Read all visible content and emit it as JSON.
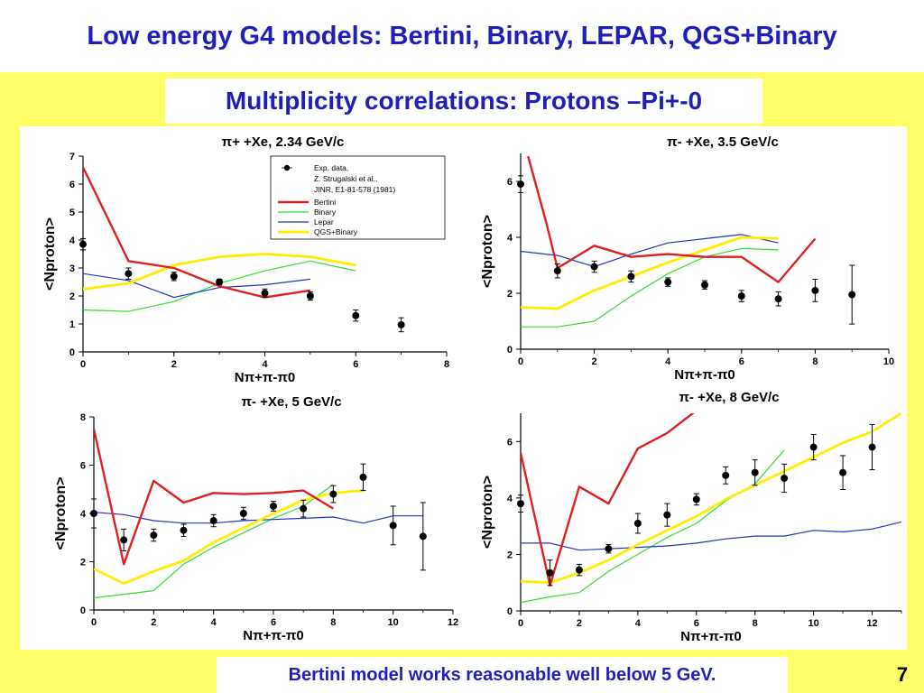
{
  "title": "Low energy G4 models: Bertini, Binary, LEPAR, QGS+Binary",
  "subtitle": "Multiplicity correlations: Protons –Pi+-0",
  "footer": "Bertini model works reasonable well below 5 GeV.",
  "page_number": "7",
  "colors": {
    "title": "#1f1fb8",
    "background": "#ffff66",
    "bertini": "#e02020",
    "binary": "#33dd33",
    "lepar": "#2233bb",
    "qgs": "#ffee00",
    "exp": "#000000"
  },
  "legend": {
    "entries": [
      "Exp. data,",
      "Z. Strugalski et al.,",
      "JINR, E1-81-578 (1981)",
      "Bertini",
      "Binary",
      "Lepar",
      "QGS+Binary"
    ]
  },
  "chart_data": [
    {
      "type": "line",
      "title": "π+ +Xe, 2.34 GeV/c",
      "xlabel": "Nπ+π-π0",
      "ylabel": "<Nproton>",
      "xlim": [
        0,
        8
      ],
      "ylim": [
        0,
        7
      ],
      "xticks": [
        0,
        2,
        4,
        6,
        8
      ],
      "yticks": [
        0,
        1,
        2,
        3,
        4,
        5,
        6,
        7
      ],
      "legend_position": "top-right",
      "exp": {
        "x": [
          0,
          1,
          2,
          3,
          4,
          5,
          6,
          7
        ],
        "y": [
          3.85,
          2.8,
          2.7,
          2.5,
          2.1,
          2.0,
          1.3,
          0.97
        ],
        "err": [
          0.2,
          0.2,
          0.15,
          0.1,
          0.15,
          0.15,
          0.2,
          0.25
        ]
      },
      "series": [
        {
          "key": "bertini",
          "x": [
            0,
            1,
            2,
            3,
            4,
            5
          ],
          "y": [
            6.6,
            3.25,
            3.0,
            2.35,
            1.95,
            2.2
          ]
        },
        {
          "key": "binary",
          "x": [
            0,
            1,
            2,
            3,
            4,
            5,
            6
          ],
          "y": [
            1.5,
            1.45,
            1.8,
            2.45,
            2.9,
            3.25,
            2.9
          ]
        },
        {
          "key": "lepar",
          "x": [
            0,
            1,
            2,
            3,
            4,
            5
          ],
          "y": [
            2.8,
            2.55,
            1.95,
            2.3,
            2.4,
            2.6
          ]
        },
        {
          "key": "qgs",
          "x": [
            0,
            1,
            2,
            3,
            4,
            5,
            6
          ],
          "y": [
            2.25,
            2.45,
            3.1,
            3.4,
            3.5,
            3.4,
            3.1
          ]
        }
      ]
    },
    {
      "type": "line",
      "title": "π- +Xe, 3.5 GeV/c",
      "xlabel": "Nπ+π-π0",
      "ylabel": "<Nproton>",
      "xlim": [
        0,
        10
      ],
      "ylim": [
        0,
        7
      ],
      "xticks": [
        0,
        2,
        4,
        6,
        8,
        10
      ],
      "yticks": [
        0,
        2,
        4,
        6
      ],
      "exp": {
        "x": [
          0,
          1,
          2,
          3,
          4,
          5,
          6,
          7,
          8,
          9
        ],
        "y": [
          5.9,
          2.8,
          2.95,
          2.6,
          2.4,
          2.3,
          1.9,
          1.8,
          2.1,
          1.95
        ],
        "err": [
          0.3,
          0.25,
          0.2,
          0.2,
          0.15,
          0.15,
          0.2,
          0.25,
          0.4,
          1.05
        ]
      },
      "series": [
        {
          "key": "bertini",
          "x": [
            0.2,
            0.7,
            1,
            2,
            3,
            4,
            5,
            6,
            7,
            8
          ],
          "y": [
            6.9,
            4.5,
            2.9,
            3.7,
            3.3,
            3.4,
            3.3,
            3.3,
            2.4,
            3.95
          ]
        },
        {
          "key": "binary",
          "x": [
            0,
            1,
            2,
            3,
            4,
            5,
            6,
            7
          ],
          "y": [
            0.8,
            0.8,
            1.0,
            1.9,
            2.7,
            3.3,
            3.6,
            3.55
          ]
        },
        {
          "key": "lepar",
          "x": [
            0,
            1,
            2,
            3,
            4,
            5,
            6,
            7
          ],
          "y": [
            3.5,
            3.35,
            2.95,
            3.4,
            3.8,
            3.95,
            4.1,
            3.8
          ]
        },
        {
          "key": "qgs",
          "x": [
            0,
            1,
            2,
            3,
            4,
            5,
            6,
            7
          ],
          "y": [
            1.5,
            1.45,
            2.1,
            2.6,
            3.1,
            3.55,
            4.0,
            3.95
          ]
        }
      ]
    },
    {
      "type": "line",
      "title": "π- +Xe, 5 GeV/c",
      "xlabel": "Nπ+π-π0",
      "ylabel": "<Nproton>",
      "xlim": [
        0,
        12
      ],
      "ylim": [
        0,
        8
      ],
      "xticks": [
        0,
        2,
        4,
        6,
        8,
        10,
        12
      ],
      "yticks": [
        0,
        2,
        4,
        6,
        8
      ],
      "exp": {
        "x": [
          0,
          1,
          2,
          3,
          4,
          5,
          6,
          7,
          8,
          9,
          10,
          11
        ],
        "y": [
          4.0,
          2.9,
          3.1,
          3.3,
          3.7,
          4.0,
          4.3,
          4.2,
          4.8,
          5.5,
          3.5,
          3.05
        ],
        "err": [
          0.6,
          0.45,
          0.25,
          0.25,
          0.25,
          0.25,
          0.2,
          0.35,
          0.35,
          0.55,
          0.8,
          1.4
        ]
      },
      "series": [
        {
          "key": "bertini",
          "x": [
            0,
            1,
            2,
            3,
            4,
            5,
            6,
            7,
            8
          ],
          "y": [
            7.5,
            1.9,
            5.35,
            4.45,
            4.85,
            4.8,
            4.85,
            4.95,
            4.2
          ]
        },
        {
          "key": "binary",
          "x": [
            0,
            1,
            2,
            3,
            4,
            5,
            6,
            7,
            8
          ],
          "y": [
            0.5,
            0.65,
            0.8,
            1.9,
            2.6,
            3.2,
            3.8,
            4.3,
            5.2
          ]
        },
        {
          "key": "lepar",
          "x": [
            0,
            1,
            2,
            3,
            4,
            5,
            6,
            7,
            8,
            9,
            10,
            11
          ],
          "y": [
            4.05,
            3.95,
            3.7,
            3.6,
            3.6,
            3.7,
            3.75,
            3.8,
            3.85,
            3.6,
            3.9,
            3.9
          ]
        },
        {
          "key": "qgs",
          "x": [
            0,
            1,
            2,
            3,
            4,
            5,
            6,
            7,
            8,
            9
          ],
          "y": [
            1.7,
            1.1,
            1.6,
            2.05,
            2.8,
            3.4,
            4.0,
            4.55,
            4.85,
            4.95
          ]
        }
      ]
    },
    {
      "type": "line",
      "title": "π- +Xe, 8 GeV/c",
      "xlabel": "Nπ+π-π0",
      "ylabel": "<Nproton>",
      "xlim": [
        0,
        13
      ],
      "ylim": [
        0,
        7
      ],
      "xticks": [
        0,
        2,
        4,
        6,
        8,
        10,
        12
      ],
      "yticks": [
        0,
        2,
        4,
        6
      ],
      "exp": {
        "x": [
          0,
          1,
          2,
          3,
          4,
          5,
          6,
          7,
          8,
          9,
          10,
          11,
          12
        ],
        "y": [
          3.8,
          1.35,
          1.45,
          2.2,
          3.1,
          3.4,
          3.95,
          4.8,
          4.9,
          4.7,
          5.8,
          4.9,
          5.8
        ],
        "err": [
          0.3,
          0.45,
          0.2,
          0.15,
          0.35,
          0.4,
          0.2,
          0.3,
          0.45,
          0.5,
          0.45,
          0.6,
          0.8
        ]
      },
      "series": [
        {
          "key": "bertini",
          "x": [
            0,
            1,
            2,
            3,
            4,
            5,
            6
          ],
          "y": [
            5.6,
            0.9,
            4.4,
            3.8,
            5.75,
            6.3,
            7.1
          ]
        },
        {
          "key": "binary",
          "x": [
            0,
            1,
            2,
            3,
            4,
            5,
            6,
            7,
            8,
            9
          ],
          "y": [
            0.3,
            0.5,
            0.65,
            1.4,
            2.0,
            2.6,
            3.1,
            3.9,
            4.5,
            5.7
          ]
        },
        {
          "key": "lepar",
          "x": [
            0,
            1,
            2,
            3,
            4,
            5,
            6,
            7,
            8,
            9,
            10,
            11,
            12,
            13
          ],
          "y": [
            2.4,
            2.4,
            2.15,
            2.2,
            2.25,
            2.3,
            2.4,
            2.55,
            2.65,
            2.65,
            2.85,
            2.8,
            2.9,
            3.15
          ]
        },
        {
          "key": "qgs",
          "x": [
            0,
            1,
            2,
            3,
            4,
            5,
            6,
            7,
            8,
            9,
            10,
            11,
            12,
            13
          ],
          "y": [
            1.05,
            1.0,
            1.35,
            1.8,
            2.35,
            2.85,
            3.35,
            3.95,
            4.45,
            4.95,
            5.45,
            5.95,
            6.35,
            7.0
          ]
        }
      ]
    }
  ]
}
